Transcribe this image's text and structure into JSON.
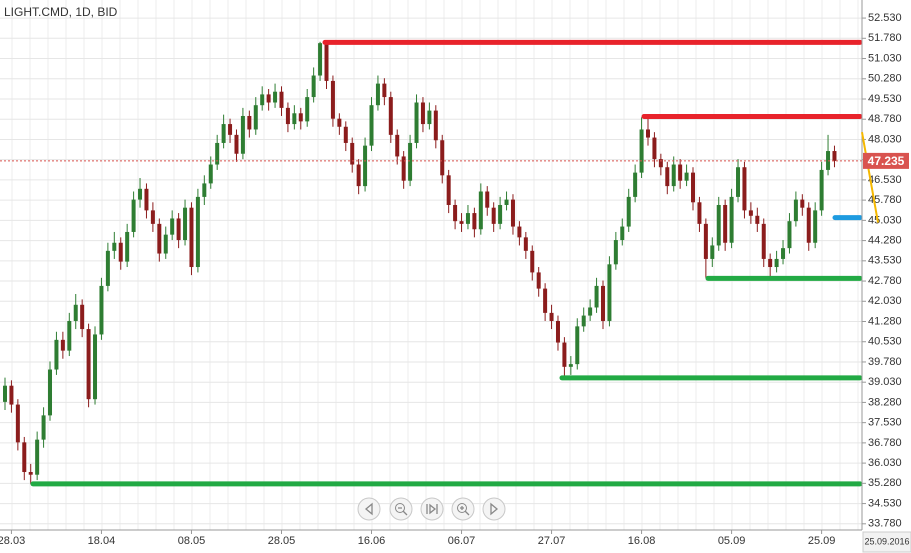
{
  "chart_data": {
    "type": "candlestick",
    "title": "LIGHT.CMD, 1D, BID",
    "categories": [
      null,
      "28.03",
      null,
      null,
      null,
      null,
      null,
      null,
      null,
      null,
      null,
      null,
      null,
      null,
      null,
      "18.04",
      null,
      null,
      null,
      null,
      null,
      null,
      null,
      null,
      null,
      null,
      null,
      null,
      null,
      "08.05",
      null,
      null,
      null,
      null,
      null,
      null,
      null,
      null,
      null,
      null,
      null,
      null,
      null,
      "28.05",
      null,
      null,
      null,
      null,
      null,
      null,
      null,
      null,
      null,
      null,
      null,
      null,
      null,
      "16.06",
      null,
      null,
      null,
      null,
      null,
      null,
      null,
      null,
      null,
      null,
      null,
      null,
      null,
      "06.07",
      null,
      null,
      null,
      null,
      null,
      null,
      null,
      null,
      null,
      null,
      null,
      null,
      null,
      "27.07",
      null,
      null,
      null,
      null,
      null,
      null,
      null,
      null,
      null,
      null,
      null,
      null,
      null,
      "16.08",
      null,
      null,
      null,
      null,
      null,
      null,
      null,
      null,
      null,
      null,
      null,
      null,
      null,
      "05.09",
      null,
      null,
      null,
      null,
      null,
      null,
      null,
      null,
      null,
      null,
      null,
      null,
      null,
      "25.09",
      null,
      null
    ],
    "open": [
      38.3,
      38.9,
      38.2,
      36.8,
      35.7,
      35.6,
      36.9,
      37.8,
      39.5,
      40.6,
      40.2,
      41.3,
      41.9,
      41.0,
      38.4,
      40.8,
      42.6,
      43.9,
      44.2,
      43.5,
      44.6,
      45.8,
      46.2,
      45.4,
      44.9,
      43.8,
      44.5,
      45.1,
      44.3,
      45.5,
      43.3,
      45.9,
      46.4,
      47.1,
      47.9,
      48.6,
      48.2,
      47.5,
      48.9,
      48.4,
      49.3,
      49.7,
      49.4,
      49.8,
      49.2,
      48.6,
      49.0,
      48.7,
      49.6,
      50.4,
      51.6,
      50.2,
      48.8,
      48.5,
      47.9,
      47.1,
      46.3,
      47.8,
      49.3,
      50.1,
      49.6,
      48.2,
      47.4,
      46.5,
      47.9,
      49.4,
      48.6,
      49.1,
      48.0,
      46.7,
      45.6,
      45.0,
      44.9,
      45.3,
      44.7,
      46.1,
      45.5,
      44.9,
      45.6,
      45.8,
      44.8,
      44.4,
      43.9,
      43.1,
      42.5,
      41.6,
      41.3,
      40.5,
      39.6,
      39.7,
      41.1,
      41.5,
      41.8,
      42.6,
      41.3,
      43.4,
      44.3,
      44.8,
      45.9,
      46.8,
      48.4,
      48.1,
      47.3,
      47.0,
      46.3,
      47.1,
      46.5,
      46.8,
      45.7,
      44.9,
      43.6,
      44.1,
      45.6,
      44.2,
      45.9,
      47.0,
      45.4,
      45.2,
      44.9,
      43.6,
      43.3,
      43.6,
      44.0,
      45.0,
      45.8,
      45.5,
      44.2,
      45.4,
      46.9,
      47.6
    ],
    "high": [
      39.2,
      39.1,
      38.4,
      37.0,
      36.0,
      37.2,
      38.1,
      39.8,
      40.9,
      40.9,
      41.6,
      42.3,
      42.1,
      41.2,
      41.1,
      42.9,
      44.2,
      44.6,
      44.4,
      44.9,
      46.1,
      46.6,
      46.4,
      45.7,
      45.1,
      44.8,
      45.4,
      45.3,
      45.8,
      45.7,
      46.2,
      46.7,
      47.4,
      48.2,
      48.95,
      48.8,
      48.4,
      49.2,
      49.1,
      49.6,
      50.0,
      49.9,
      50.1,
      50.0,
      49.4,
      49.3,
      49.2,
      49.9,
      50.7,
      51.65,
      51.6,
      50.4,
      49.0,
      48.7,
      48.1,
      47.3,
      48.1,
      49.6,
      50.4,
      50.3,
      49.8,
      48.4,
      47.6,
      48.2,
      49.7,
      49.6,
      49.4,
      49.3,
      48.2,
      46.9,
      45.8,
      45.3,
      45.6,
      45.5,
      46.4,
      46.3,
      45.7,
      45.9,
      46.1,
      46.0,
      45.0,
      44.6,
      44.1,
      43.3,
      42.7,
      41.9,
      41.5,
      40.7,
      40.0,
      41.4,
      41.8,
      42.1,
      42.9,
      42.8,
      43.7,
      44.6,
      45.1,
      46.2,
      47.1,
      48.85,
      48.8,
      48.3,
      47.5,
      47.2,
      47.4,
      47.3,
      47.1,
      47.0,
      45.9,
      45.1,
      44.4,
      45.9,
      45.8,
      46.2,
      47.3,
      47.2,
      45.7,
      45.5,
      45.1,
      43.8,
      43.9,
      44.3,
      45.3,
      46.1,
      46.0,
      45.7,
      45.7,
      47.2,
      48.2,
      47.8
    ],
    "low": [
      38.0,
      37.9,
      36.5,
      35.4,
      35.25,
      35.4,
      36.6,
      37.6,
      39.3,
      39.9,
      40.0,
      41.0,
      40.7,
      38.1,
      38.2,
      40.6,
      42.4,
      43.6,
      43.2,
      43.3,
      44.4,
      45.5,
      45.1,
      44.6,
      43.5,
      43.6,
      44.3,
      44.0,
      44.1,
      43.0,
      43.1,
      45.6,
      46.2,
      46.9,
      47.7,
      47.9,
      47.2,
      47.3,
      48.1,
      48.2,
      49.1,
      49.1,
      49.2,
      48.9,
      48.3,
      48.4,
      48.4,
      48.5,
      49.4,
      50.2,
      49.9,
      48.5,
      48.2,
      47.6,
      46.8,
      46.0,
      46.1,
      47.6,
      49.1,
      49.3,
      47.9,
      47.1,
      46.2,
      46.3,
      47.7,
      48.3,
      48.4,
      47.7,
      46.4,
      45.3,
      44.7,
      44.6,
      44.7,
      44.4,
      44.5,
      45.2,
      44.6,
      44.7,
      45.4,
      44.5,
      44.1,
      43.6,
      42.8,
      42.2,
      41.3,
      41.0,
      40.2,
      39.2,
      39.3,
      39.5,
      40.9,
      41.3,
      41.6,
      41.0,
      41.1,
      43.2,
      44.1,
      44.6,
      45.7,
      46.6,
      47.8,
      47.0,
      46.7,
      46.0,
      46.1,
      46.2,
      46.3,
      45.4,
      44.6,
      42.9,
      43.3,
      43.9,
      43.9,
      44.0,
      45.7,
      45.1,
      44.9,
      44.6,
      43.3,
      42.8,
      43.1,
      43.4,
      43.8,
      44.8,
      45.2,
      43.9,
      44.0,
      45.2,
      46.7,
      47.0
    ],
    "close": [
      38.9,
      38.2,
      36.8,
      35.7,
      35.6,
      36.9,
      37.8,
      39.5,
      40.6,
      40.2,
      41.3,
      41.9,
      41.0,
      38.4,
      40.8,
      42.6,
      43.9,
      44.2,
      43.5,
      44.6,
      45.8,
      46.2,
      45.4,
      44.9,
      43.8,
      44.5,
      45.1,
      44.3,
      45.5,
      43.3,
      45.9,
      46.4,
      47.1,
      47.9,
      48.6,
      48.2,
      47.5,
      48.9,
      48.4,
      49.3,
      49.7,
      49.4,
      49.8,
      49.2,
      48.6,
      49.0,
      48.7,
      49.6,
      50.4,
      51.6,
      50.2,
      48.8,
      48.5,
      47.9,
      47.1,
      46.3,
      47.8,
      49.3,
      50.1,
      49.6,
      48.2,
      47.4,
      46.5,
      47.9,
      49.4,
      48.6,
      49.1,
      48.0,
      46.7,
      45.6,
      45.0,
      44.9,
      45.3,
      44.7,
      46.1,
      45.5,
      44.9,
      45.6,
      45.8,
      44.8,
      44.4,
      43.9,
      43.1,
      42.5,
      41.6,
      41.3,
      40.5,
      39.6,
      39.7,
      41.1,
      41.5,
      41.8,
      42.6,
      41.3,
      43.4,
      44.3,
      44.8,
      45.9,
      46.8,
      48.4,
      48.1,
      47.3,
      47.0,
      46.3,
      47.1,
      46.5,
      46.8,
      45.7,
      44.9,
      43.6,
      44.1,
      45.6,
      44.2,
      45.9,
      47.0,
      45.4,
      45.2,
      44.9,
      43.6,
      43.3,
      43.6,
      44.0,
      45.0,
      45.8,
      45.5,
      44.2,
      45.4,
      46.9,
      47.6,
      47.235
    ],
    "up_color": "#2e7d32",
    "down_color": "#8b1c1c",
    "last_price": 47.235,
    "last_price_color": "#d9534f",
    "x_cursor_label": "25.09.2016",
    "ylim": [
      33.55,
      53.2
    ],
    "yticks": [
      {
        "value": 52.53,
        "label": "52.530"
      },
      {
        "value": 51.78,
        "label": "51.780"
      },
      {
        "value": 51.03,
        "label": "51.030"
      },
      {
        "value": 50.28,
        "label": "50.280"
      },
      {
        "value": 49.53,
        "label": "49.530"
      },
      {
        "value": 48.78,
        "label": "48.780"
      },
      {
        "value": 48.03,
        "label": "48.030"
      },
      {
        "value": 47.28,
        "label": "47.280"
      },
      {
        "value": 46.53,
        "label": "46.530"
      },
      {
        "value": 45.78,
        "label": "45.780"
      },
      {
        "value": 45.03,
        "label": "45.030"
      },
      {
        "value": 44.28,
        "label": "44.280"
      },
      {
        "value": 43.53,
        "label": "43.530"
      },
      {
        "value": 42.78,
        "label": "42.780"
      },
      {
        "value": 42.03,
        "label": "42.030"
      },
      {
        "value": 41.28,
        "label": "41.280"
      },
      {
        "value": 40.53,
        "label": "40.530"
      },
      {
        "value": 39.78,
        "label": "39.780"
      },
      {
        "value": 39.03,
        "label": "39.030"
      },
      {
        "value": 38.28,
        "label": "38.280"
      },
      {
        "value": 37.53,
        "label": "37.530"
      },
      {
        "value": 36.78,
        "label": "36.780"
      },
      {
        "value": 36.03,
        "label": "36.030"
      },
      {
        "value": 35.28,
        "label": "35.280"
      },
      {
        "value": 34.53,
        "label": "34.530"
      },
      {
        "value": 33.78,
        "label": "33.780"
      }
    ],
    "grid": true,
    "levels": [
      {
        "value": 51.63,
        "color": "#e8232b"
      },
      {
        "value": 48.88,
        "color": "#e8232b"
      },
      {
        "value": 42.88,
        "color": "#22aa44"
      },
      {
        "value": 39.19,
        "color": "#22aa44"
      },
      {
        "value": 35.26,
        "color": "#22aa44"
      },
      {
        "value": 45.13,
        "color": "#1e9be0"
      }
    ],
    "trend": {
      "values": [
        48.3,
        44.95
      ],
      "color": "#f5b800"
    }
  }
}
